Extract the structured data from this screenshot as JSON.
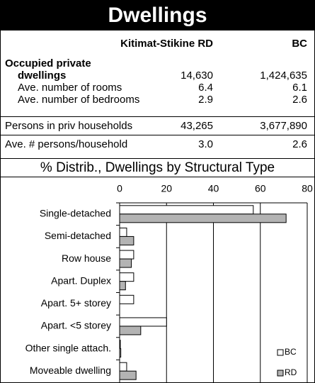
{
  "header": {
    "title": "Dwellings"
  },
  "table": {
    "columns": [
      "Kitimat-Stikine RD",
      "BC"
    ],
    "rows": [
      {
        "label": [
          "Occupied private",
          "dwellings"
        ],
        "values": [
          "14,630",
          "1,424,635"
        ]
      },
      {
        "label": [
          "Ave. number of rooms"
        ],
        "values": [
          "6.4",
          "6.1"
        ]
      },
      {
        "label": [
          "Ave. number of bedrooms"
        ],
        "values": [
          "2.9",
          "2.6"
        ]
      },
      {
        "label": [
          "Persons in priv households"
        ],
        "values": [
          "43,265",
          "3,677,890"
        ]
      },
      {
        "label": [
          "Ave. # persons/household"
        ],
        "values": [
          "3.0",
          "2.6"
        ]
      }
    ]
  },
  "chart_data": {
    "type": "hbar",
    "title": "% Distrib., Dwellings by Structural Type",
    "categories": [
      "Single-detached",
      "Semi-detached",
      "Row house",
      "Apart. Duplex",
      "Apart. 5+ storey",
      "Apart. <5 storey",
      "Other single attach.",
      "Moveable dwelling"
    ],
    "series": [
      {
        "name": "BC",
        "color": "#ffffff",
        "values": [
          57,
          3,
          6,
          6,
          6,
          20,
          0.3,
          3
        ]
      },
      {
        "name": "RD",
        "color": "#b3b3b3",
        "values": [
          71,
          6,
          5,
          2.5,
          0,
          9,
          0.5,
          7
        ]
      }
    ],
    "xlim": [
      0,
      80
    ],
    "xticks": [
      0,
      20,
      40,
      60,
      80
    ],
    "grid": true,
    "legend": "lower right"
  }
}
